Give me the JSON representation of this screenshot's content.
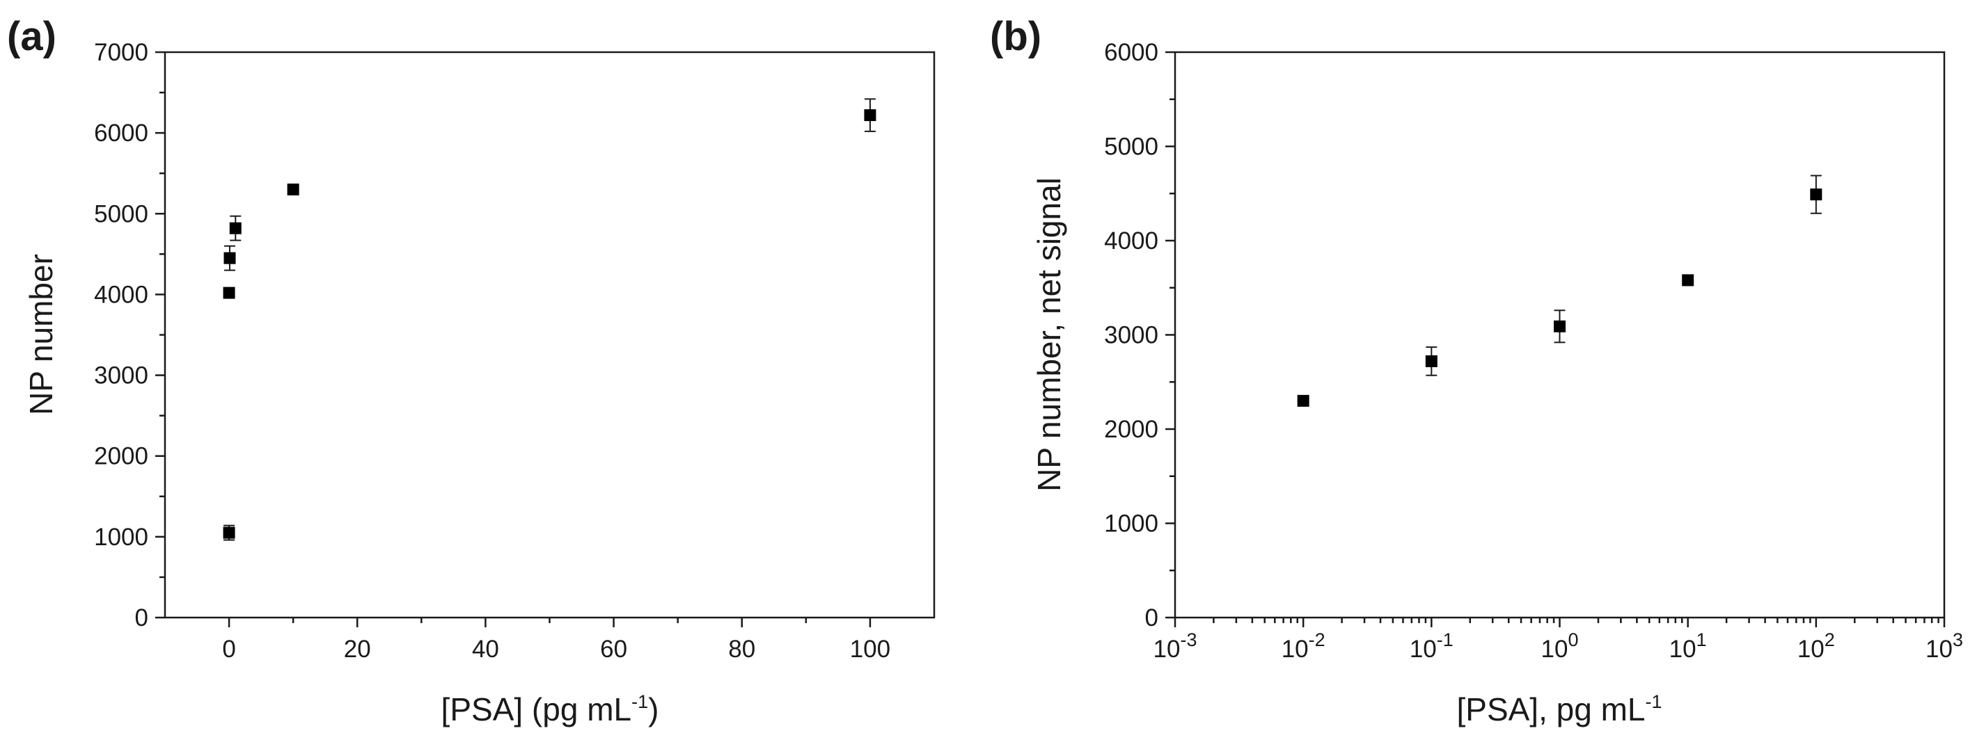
{
  "panels": [
    {
      "id": "a",
      "panel_label": "(a)",
      "ylabel": "NP number",
      "xlabel_parts": {
        "main": "[PSA] (pg mL",
        "sup": "-1",
        "end": ")"
      },
      "xlabels": [
        "0",
        "20",
        "40",
        "60",
        "80",
        "100"
      ],
      "ylabels": [
        "0",
        "1000",
        "2000",
        "3000",
        "4000",
        "5000",
        "6000",
        "7000"
      ]
    },
    {
      "id": "b",
      "panel_label": "(b)",
      "ylabel": "NP number, net signal",
      "xlabel_parts": {
        "main": "[PSA], pg mL",
        "sup": "-1",
        "end": ""
      },
      "xlabels": [
        {
          "base": "10",
          "exp": "-3"
        },
        {
          "base": "10",
          "exp": "-2"
        },
        {
          "base": "10",
          "exp": "-1"
        },
        {
          "base": "10",
          "exp": "0"
        },
        {
          "base": "10",
          "exp": "1"
        },
        {
          "base": "10",
          "exp": "2"
        },
        {
          "base": "10",
          "exp": "3"
        }
      ],
      "ylabels": [
        "0",
        "1000",
        "2000",
        "3000",
        "4000",
        "5000",
        "6000"
      ]
    }
  ],
  "chart_data": [
    {
      "type": "scatter",
      "panel": "(a)",
      "xlabel": "[PSA] (pg mL-1)",
      "ylabel": "NP number",
      "xlim": [
        -10,
        110
      ],
      "ylim": [
        0,
        7000
      ],
      "x_scale": "linear",
      "x_ticks": [
        0,
        20,
        40,
        60,
        80,
        100
      ],
      "y_ticks": [
        0,
        1000,
        2000,
        3000,
        4000,
        5000,
        6000,
        7000
      ],
      "grid": false,
      "legend": "none",
      "marker_color": "#000000",
      "points": [
        {
          "x": 0,
          "y": 1050,
          "err": 90
        },
        {
          "x": 0,
          "y": 4020,
          "err": 30
        },
        {
          "x": 0.1,
          "y": 4450,
          "err": 150
        },
        {
          "x": 1,
          "y": 4820,
          "err": 150
        },
        {
          "x": 10,
          "y": 5300,
          "err": 40
        },
        {
          "x": 100,
          "y": 6220,
          "err": 200
        }
      ]
    },
    {
      "type": "scatter",
      "panel": "(b)",
      "xlabel": "[PSA], pg mL-1",
      "ylabel": "NP number, net signal",
      "xlim": [
        0.001,
        1000
      ],
      "ylim": [
        0,
        6000
      ],
      "x_scale": "log",
      "x_ticks": [
        0.001,
        0.01,
        0.1,
        1,
        10,
        100,
        1000
      ],
      "y_ticks": [
        0,
        1000,
        2000,
        3000,
        4000,
        5000,
        6000
      ],
      "grid": false,
      "legend": "none",
      "marker_color": "#000000",
      "points": [
        {
          "x": 0.01,
          "y": 2300,
          "err": 40
        },
        {
          "x": 0.1,
          "y": 2720,
          "err": 150
        },
        {
          "x": 1,
          "y": 3090,
          "err": 170
        },
        {
          "x": 10,
          "y": 3580,
          "err": 50
        },
        {
          "x": 100,
          "y": 4490,
          "err": 200
        }
      ]
    }
  ]
}
